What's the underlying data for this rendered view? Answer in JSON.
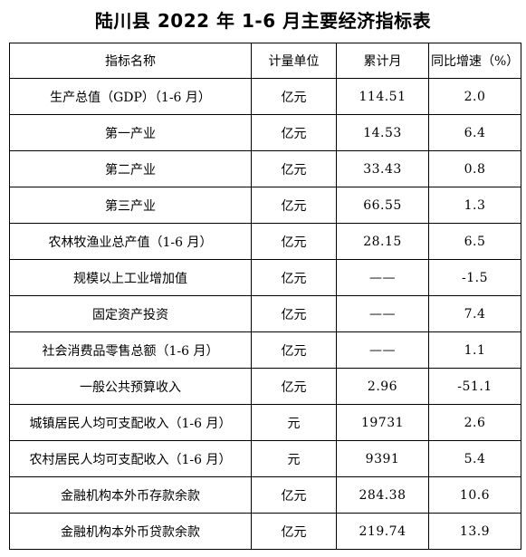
{
  "title": "陆川县 2022 年 1-6 月主要经济指标表",
  "headers": [
    "指标名称",
    "计量单位",
    "累计月",
    "同比增速（%）"
  ],
  "rows": [
    [
      "生产总值（GDP）（1-6 月）",
      "亿元",
      "114.51",
      "2.0"
    ],
    [
      "第一产业",
      "亿元",
      "14.53",
      "6.4"
    ],
    [
      "第二产业",
      "亿元",
      "33.43",
      "0.8"
    ],
    [
      "第三产业",
      "亿元",
      "66.55",
      "1.3"
    ],
    [
      "农林牧渔业总产值（1-6 月）",
      "亿元",
      "28.15",
      "6.5"
    ],
    [
      "规模以上工业增加值",
      "亿元",
      "——",
      "-1.5"
    ],
    [
      "固定资产投资",
      "亿元",
      "——",
      "7.4"
    ],
    [
      "社会消费品零售总额（1-6 月）",
      "亿元",
      "——",
      "1.1"
    ],
    [
      "一般公共预算收入",
      "亿元",
      "2.96",
      "-51.1"
    ],
    [
      "城镇居民人均可支配收入（1-6 月）",
      "元",
      "19731",
      "2.6"
    ],
    [
      "农村居民人均可支配收入（1-6 月）",
      "元",
      "9391",
      "5.4"
    ],
    [
      "金融机构本外币存款余款",
      "亿元",
      "284.38",
      "10.6"
    ],
    [
      "金融机构本外币贷款余款",
      "亿元",
      "219.74",
      "13.9"
    ]
  ]
}
